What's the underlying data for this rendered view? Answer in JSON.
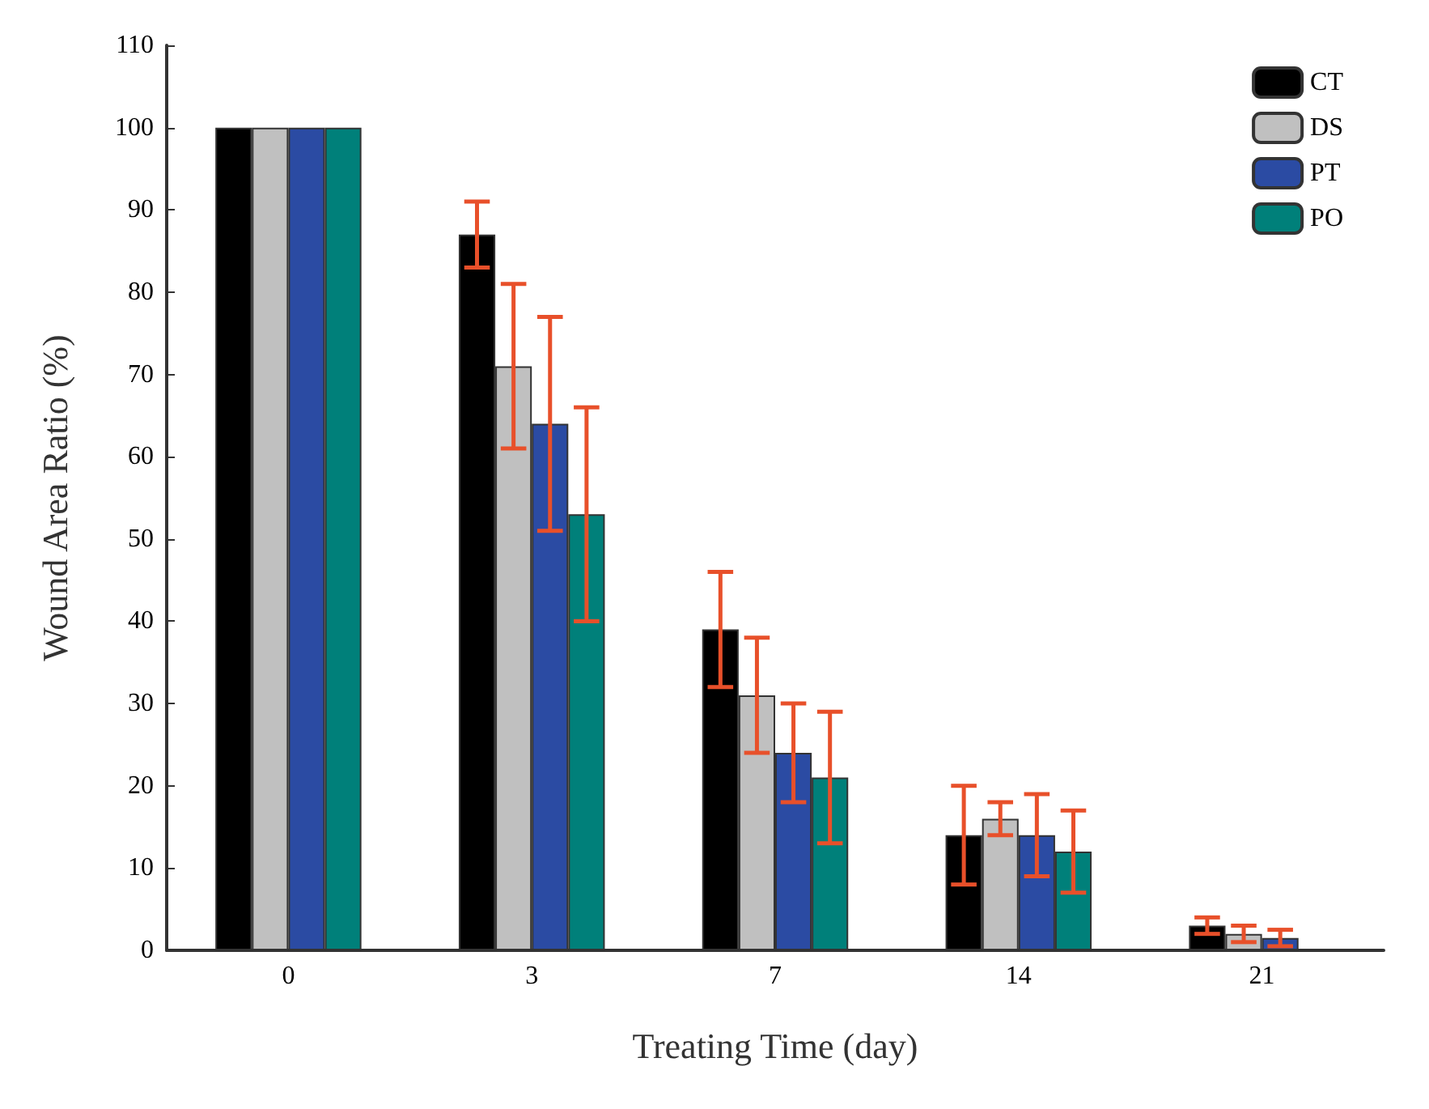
{
  "chart_data": {
    "type": "bar",
    "xlabel": "Treating Time (day)",
    "ylabel": "Wound Area Ratio (%)",
    "categories": [
      "0",
      "3",
      "7",
      "14",
      "21"
    ],
    "series": [
      {
        "name": "CT",
        "color": "#000000",
        "values": [
          100,
          87,
          39,
          14,
          3
        ],
        "errors": [
          null,
          4,
          7,
          6,
          1
        ]
      },
      {
        "name": "DS",
        "color": "#c0c0c0",
        "values": [
          100,
          71,
          31,
          16,
          2
        ],
        "errors": [
          null,
          10,
          7,
          2,
          1
        ]
      },
      {
        "name": "PT",
        "color": "#2b4ba3",
        "values": [
          100,
          64,
          24,
          14,
          1.5
        ],
        "errors": [
          null,
          13,
          6,
          5,
          1
        ]
      },
      {
        "name": "PO",
        "color": "#00807a",
        "values": [
          100,
          53,
          21,
          12,
          null
        ],
        "errors": [
          null,
          13,
          8,
          5,
          null
        ]
      }
    ],
    "ylim": [
      0,
      110
    ],
    "yticks": [
      0,
      10,
      20,
      30,
      40,
      50,
      60,
      70,
      80,
      90,
      100,
      110
    ],
    "grid": false,
    "legend": "top right"
  }
}
